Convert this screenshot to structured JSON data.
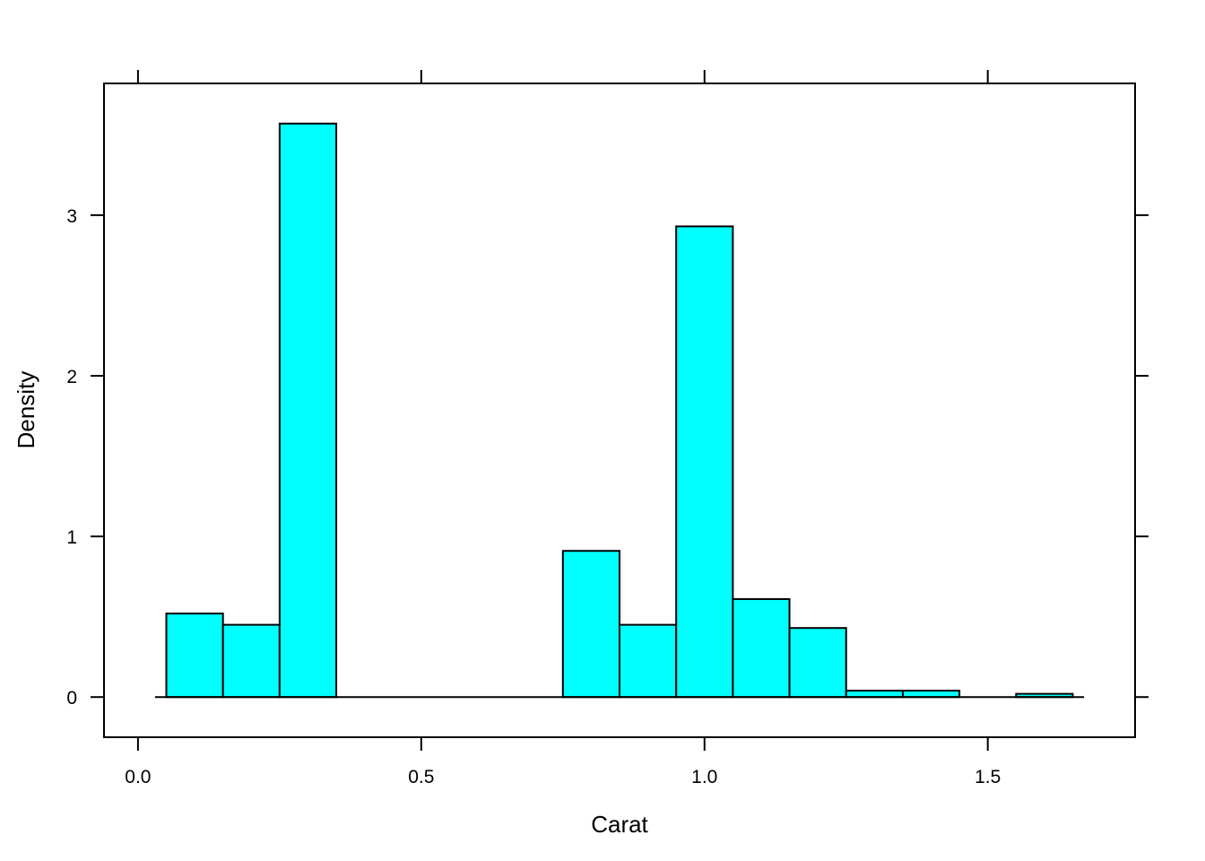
{
  "chart_data": {
    "type": "bar",
    "title": "",
    "xlabel": "Carat",
    "ylabel": "Density",
    "xlim": [
      -0.06,
      1.76
    ],
    "ylim": [
      -0.25,
      3.82
    ],
    "x_ticks": [
      {
        "value": 0.0,
        "label": "0.0"
      },
      {
        "value": 0.5,
        "label": "0.5"
      },
      {
        "value": 1.0,
        "label": "1.0"
      },
      {
        "value": 1.5,
        "label": "1.5"
      }
    ],
    "y_ticks": [
      {
        "value": 0,
        "label": "0"
      },
      {
        "value": 1,
        "label": "1"
      },
      {
        "value": 2,
        "label": "2"
      },
      {
        "value": 3,
        "label": "3"
      }
    ],
    "baseline": {
      "from": 0.03,
      "to": 1.67
    },
    "bins": [
      {
        "start": 0.05,
        "end": 0.15,
        "density": 0.52
      },
      {
        "start": 0.15,
        "end": 0.25,
        "density": 0.45
      },
      {
        "start": 0.25,
        "end": 0.35,
        "density": 3.57
      },
      {
        "start": 0.35,
        "end": 0.45,
        "density": 0
      },
      {
        "start": 0.45,
        "end": 0.55,
        "density": 0
      },
      {
        "start": 0.55,
        "end": 0.65,
        "density": 0
      },
      {
        "start": 0.65,
        "end": 0.75,
        "density": 0
      },
      {
        "start": 0.75,
        "end": 0.85,
        "density": 0.91
      },
      {
        "start": 0.85,
        "end": 0.95,
        "density": 0.45
      },
      {
        "start": 0.95,
        "end": 1.05,
        "density": 2.93
      },
      {
        "start": 1.05,
        "end": 1.15,
        "density": 0.61
      },
      {
        "start": 1.15,
        "end": 1.25,
        "density": 0.43
      },
      {
        "start": 1.25,
        "end": 1.35,
        "density": 0.04
      },
      {
        "start": 1.35,
        "end": 1.45,
        "density": 0.04
      },
      {
        "start": 1.45,
        "end": 1.55,
        "density": 0
      },
      {
        "start": 1.55,
        "end": 1.65,
        "density": 0.02
      }
    ],
    "bar_fill": "#00FFFF",
    "bar_stroke": "#000000",
    "grid": false,
    "legend": "none"
  }
}
